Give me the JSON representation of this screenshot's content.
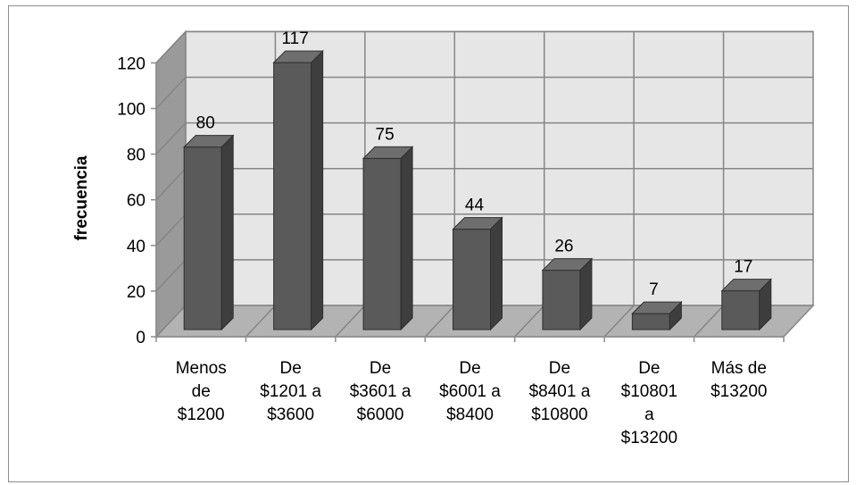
{
  "chart_data": {
    "type": "bar",
    "title": "",
    "xlabel": "",
    "ylabel": "frecuencia",
    "ylim": [
      0,
      120
    ],
    "yticks": [
      "0",
      "20",
      "40",
      "60",
      "80",
      "100",
      "120"
    ],
    "grid": true,
    "three_d": true,
    "categories": [
      [
        "Menos",
        "de",
        "$1200"
      ],
      [
        "De",
        "$1201 a",
        "$3600"
      ],
      [
        "De",
        "$3601 a",
        "$6000"
      ],
      [
        "De",
        "$6001 a",
        "$8400"
      ],
      [
        "De",
        "$8401 a",
        "$10800"
      ],
      [
        "De",
        "$10801",
        "a",
        "$13200"
      ],
      [
        "Más de",
        "$13200"
      ]
    ],
    "values": [
      80,
      117,
      75,
      44,
      26,
      7,
      17
    ],
    "data_labels": [
      "80",
      "117",
      "75",
      "44",
      "26",
      "7",
      "17"
    ],
    "colors": {
      "bar_front": "#5a5a5a",
      "bar_top": "#6e6e6e",
      "bar_side": "#3e3e3e",
      "back_wall": "#e6e6e6",
      "side_wall": "#9a9a9a",
      "floor": "#b3b3b3",
      "grid": "#858585"
    }
  }
}
